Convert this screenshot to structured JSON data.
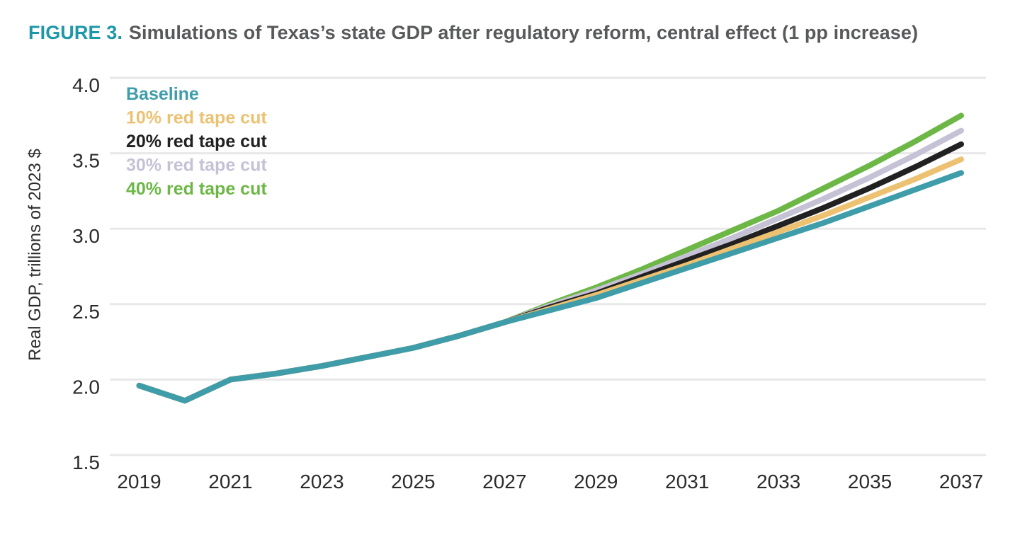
{
  "figure": {
    "label": "FIGURE 3.",
    "title": "Simulations of Texas’s state GDP after regulatory reform, central effect (1 pp increase)"
  },
  "colors": {
    "figure_label_accent": "#1E97A8",
    "title_text": "#58595B",
    "gridline": "#E8E8E8",
    "tick_text": "#2B2B2B"
  },
  "chart_data": {
    "type": "line",
    "title": "FIGURE 3. Simulations of Texas’s state GDP after regulatory reform, central effect (1 pp increase)",
    "xlabel": "",
    "ylabel": "Real GDP, trillions of 2023 $",
    "x": [
      2019,
      2020,
      2021,
      2022,
      2023,
      2024,
      2025,
      2026,
      2027,
      2028,
      2029,
      2030,
      2031,
      2032,
      2033,
      2034,
      2035,
      2036,
      2037
    ],
    "x_tick_labels": [
      "2019",
      "2021",
      "2023",
      "2025",
      "2027",
      "2029",
      "2031",
      "2033",
      "2035",
      "2037"
    ],
    "y_ticks": [
      1.5,
      2.0,
      2.5,
      3.0,
      3.5,
      4.0
    ],
    "ylim": [
      1.5,
      4.0
    ],
    "grid": "horizontal",
    "legend_position": "top-left-inside",
    "series": [
      {
        "name": "Baseline",
        "color": "#3F9DA9",
        "values": [
          1.96,
          1.86,
          2.0,
          2.04,
          2.09,
          2.15,
          2.21,
          2.29,
          2.38,
          2.46,
          2.54,
          2.64,
          2.74,
          2.84,
          2.94,
          3.04,
          3.15,
          3.26,
          3.37
        ]
      },
      {
        "name": "10% red tape cut",
        "color": "#ECC171",
        "values": [
          1.96,
          1.86,
          2.0,
          2.04,
          2.09,
          2.15,
          2.21,
          2.29,
          2.38,
          2.47,
          2.56,
          2.66,
          2.76,
          2.87,
          2.98,
          3.09,
          3.21,
          3.33,
          3.46
        ]
      },
      {
        "name": "20% red tape cut",
        "color": "#212121",
        "values": [
          1.96,
          1.86,
          2.0,
          2.04,
          2.09,
          2.15,
          2.21,
          2.29,
          2.38,
          2.48,
          2.57,
          2.68,
          2.79,
          2.9,
          3.02,
          3.14,
          3.27,
          3.41,
          3.56
        ]
      },
      {
        "name": "30% red tape cut",
        "color": "#C6C2D6",
        "values": [
          1.96,
          1.86,
          2.0,
          2.04,
          2.09,
          2.15,
          2.21,
          2.29,
          2.38,
          2.49,
          2.59,
          2.7,
          2.82,
          2.94,
          3.07,
          3.2,
          3.34,
          3.49,
          3.65
        ]
      },
      {
        "name": "40% red tape cut",
        "color": "#6DB747",
        "values": [
          1.96,
          1.86,
          2.0,
          2.04,
          2.09,
          2.15,
          2.21,
          2.29,
          2.38,
          2.5,
          2.61,
          2.73,
          2.86,
          2.99,
          3.12,
          3.27,
          3.42,
          3.58,
          3.75
        ]
      }
    ]
  }
}
